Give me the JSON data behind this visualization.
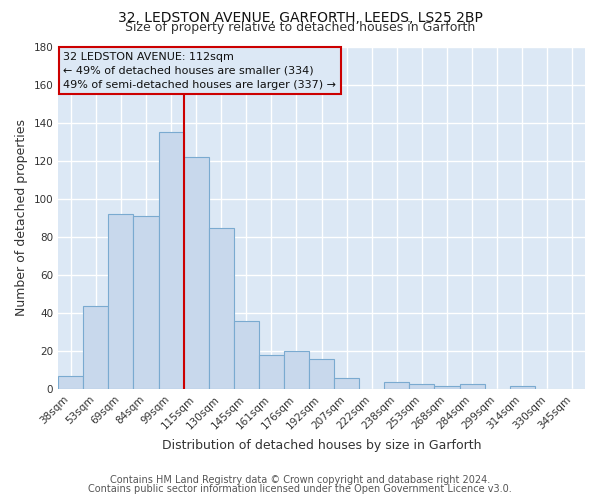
{
  "title1": "32, LEDSTON AVENUE, GARFORTH, LEEDS, LS25 2BP",
  "title2": "Size of property relative to detached houses in Garforth",
  "xlabel": "Distribution of detached houses by size in Garforth",
  "ylabel": "Number of detached properties",
  "bar_labels": [
    "38sqm",
    "53sqm",
    "69sqm",
    "84sqm",
    "99sqm",
    "115sqm",
    "130sqm",
    "145sqm",
    "161sqm",
    "176sqm",
    "192sqm",
    "207sqm",
    "222sqm",
    "238sqm",
    "253sqm",
    "268sqm",
    "284sqm",
    "299sqm",
    "314sqm",
    "330sqm",
    "345sqm"
  ],
  "bar_values": [
    7,
    44,
    92,
    91,
    135,
    122,
    85,
    36,
    18,
    20,
    16,
    6,
    0,
    4,
    3,
    2,
    3,
    0,
    2,
    0,
    0
  ],
  "bar_color": "#c8d8ec",
  "bar_edge_color": "#7aaad0",
  "background_color": "#ffffff",
  "plot_bg_color": "#dce8f5",
  "grid_color": "#ffffff",
  "annotation_line1": "32 LEDSTON AVENUE: 112sqm",
  "annotation_line2": "← 49% of detached houses are smaller (334)",
  "annotation_line3": "49% of semi-detached houses are larger (337) →",
  "annotation_box_edge": "#cc0000",
  "redline_color": "#cc0000",
  "ylim": [
    0,
    180
  ],
  "yticks": [
    0,
    20,
    40,
    60,
    80,
    100,
    120,
    140,
    160,
    180
  ],
  "footer1": "Contains HM Land Registry data © Crown copyright and database right 2024.",
  "footer2": "Contains public sector information licensed under the Open Government Licence v3.0.",
  "title1_fontsize": 10,
  "title2_fontsize": 9,
  "annot_fontsize": 8,
  "axis_label_fontsize": 9,
  "tick_fontsize": 7.5,
  "footer_fontsize": 7,
  "figsize": [
    6.0,
    5.0
  ],
  "dpi": 100
}
